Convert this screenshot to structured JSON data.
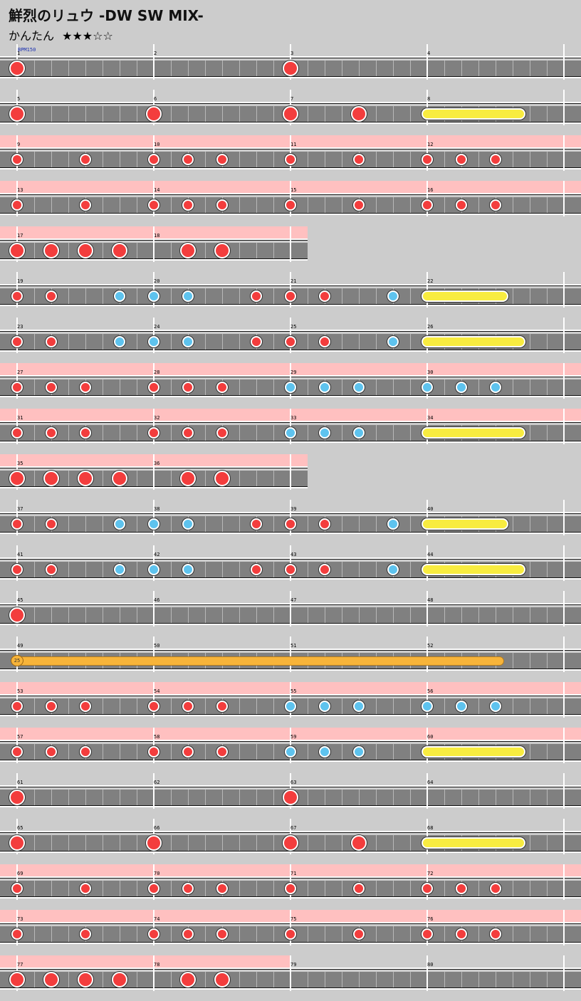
{
  "song": {
    "title": "鮮烈のリュウ -DW SW MIX-",
    "difficulty_label": "かんたん",
    "stars": "★★★☆☆"
  },
  "bpm_label": "BPM150",
  "colors": {
    "background": "#cccccc",
    "lane": "#808080",
    "gogo": "#ffc0c0",
    "don": "#f33d3d",
    "ka": "#5ec3ee",
    "roll": "#f8ec40",
    "balloon": "#f7b43a"
  },
  "rows": [
    {
      "m": [
        1,
        2,
        3,
        4
      ],
      "go": false,
      "notes": [
        [
          0,
          "D"
        ],
        [
          16,
          "D"
        ]
      ]
    },
    {
      "m": [
        5,
        6,
        7,
        8
      ],
      "go": false,
      "notes": [
        [
          0,
          "D"
        ],
        [
          8,
          "D"
        ],
        [
          16,
          "D"
        ],
        [
          20,
          "D"
        ]
      ],
      "rolls": [
        [
          24,
          29.4
        ]
      ]
    },
    {
      "m": [
        9,
        10,
        11,
        12
      ],
      "go": true,
      "notes": [
        [
          0,
          "d"
        ],
        [
          4,
          "d"
        ],
        [
          8,
          "d"
        ],
        [
          10,
          "d"
        ],
        [
          12,
          "d"
        ],
        [
          16,
          "d"
        ],
        [
          20,
          "d"
        ],
        [
          24,
          "d"
        ],
        [
          26,
          "d"
        ],
        [
          28,
          "d"
        ]
      ]
    },
    {
      "m": [
        13,
        14,
        15,
        16
      ],
      "go": true,
      "notes": [
        [
          0,
          "d"
        ],
        [
          4,
          "d"
        ],
        [
          8,
          "d"
        ],
        [
          10,
          "d"
        ],
        [
          12,
          "d"
        ],
        [
          16,
          "d"
        ],
        [
          20,
          "d"
        ],
        [
          24,
          "d"
        ],
        [
          26,
          "d"
        ],
        [
          28,
          "d"
        ]
      ]
    },
    {
      "m": [
        17,
        18
      ],
      "go": true,
      "notes": [
        [
          0,
          "D"
        ],
        [
          2,
          "D"
        ],
        [
          4,
          "D"
        ],
        [
          6,
          "D"
        ],
        [
          10,
          "D"
        ],
        [
          12,
          "D"
        ]
      ]
    },
    {
      "m": [
        19,
        20,
        21,
        22
      ],
      "go": false,
      "notes": [
        [
          0,
          "d"
        ],
        [
          2,
          "d"
        ],
        [
          6,
          "k"
        ],
        [
          8,
          "k"
        ],
        [
          10,
          "k"
        ],
        [
          14,
          "d"
        ],
        [
          16,
          "d"
        ],
        [
          18,
          "d"
        ],
        [
          22,
          "k"
        ]
      ],
      "rolls": [
        [
          24,
          28.4
        ]
      ]
    },
    {
      "m": [
        23,
        24,
        25,
        26
      ],
      "go": false,
      "notes": [
        [
          0,
          "d"
        ],
        [
          2,
          "d"
        ],
        [
          6,
          "k"
        ],
        [
          8,
          "k"
        ],
        [
          10,
          "k"
        ],
        [
          14,
          "d"
        ],
        [
          16,
          "d"
        ],
        [
          18,
          "d"
        ],
        [
          22,
          "k"
        ]
      ],
      "rolls": [
        [
          24,
          29.4
        ]
      ]
    },
    {
      "m": [
        27,
        28,
        29,
        30
      ],
      "go": true,
      "notes": [
        [
          0,
          "d"
        ],
        [
          2,
          "d"
        ],
        [
          4,
          "d"
        ],
        [
          8,
          "d"
        ],
        [
          10,
          "d"
        ],
        [
          12,
          "d"
        ],
        [
          16,
          "k"
        ],
        [
          18,
          "k"
        ],
        [
          20,
          "k"
        ],
        [
          24,
          "k"
        ],
        [
          26,
          "k"
        ],
        [
          28,
          "k"
        ]
      ]
    },
    {
      "m": [
        31,
        32,
        33,
        34
      ],
      "go": true,
      "notes": [
        [
          0,
          "d"
        ],
        [
          2,
          "d"
        ],
        [
          4,
          "d"
        ],
        [
          8,
          "d"
        ],
        [
          10,
          "d"
        ],
        [
          12,
          "d"
        ],
        [
          16,
          "k"
        ],
        [
          18,
          "k"
        ],
        [
          20,
          "k"
        ]
      ],
      "rolls": [
        [
          24,
          29.4
        ]
      ]
    },
    {
      "m": [
        35,
        36
      ],
      "go": true,
      "notes": [
        [
          0,
          "D"
        ],
        [
          2,
          "D"
        ],
        [
          4,
          "D"
        ],
        [
          6,
          "D"
        ],
        [
          10,
          "D"
        ],
        [
          12,
          "D"
        ]
      ]
    },
    {
      "m": [
        37,
        38,
        39,
        40
      ],
      "go": false,
      "notes": [
        [
          0,
          "d"
        ],
        [
          2,
          "d"
        ],
        [
          6,
          "k"
        ],
        [
          8,
          "k"
        ],
        [
          10,
          "k"
        ],
        [
          14,
          "d"
        ],
        [
          16,
          "d"
        ],
        [
          18,
          "d"
        ],
        [
          22,
          "k"
        ]
      ],
      "rolls": [
        [
          24,
          28.4
        ]
      ]
    },
    {
      "m": [
        41,
        42,
        43,
        44
      ],
      "go": false,
      "notes": [
        [
          0,
          "d"
        ],
        [
          2,
          "d"
        ],
        [
          6,
          "k"
        ],
        [
          8,
          "k"
        ],
        [
          10,
          "k"
        ],
        [
          14,
          "d"
        ],
        [
          16,
          "d"
        ],
        [
          18,
          "d"
        ],
        [
          22,
          "k"
        ]
      ],
      "rolls": [
        [
          24,
          29.4
        ]
      ]
    },
    {
      "m": [
        45,
        46,
        47,
        48
      ],
      "go": false,
      "notes": [
        [
          0,
          "D"
        ]
      ]
    },
    {
      "m": [
        49,
        50,
        51,
        52
      ],
      "go": false,
      "notes": [],
      "balloon": {
        "start": 0,
        "end": 28.5,
        "count": "25"
      }
    },
    {
      "m": [
        53,
        54,
        55,
        56
      ],
      "go": true,
      "notes": [
        [
          0,
          "d"
        ],
        [
          2,
          "d"
        ],
        [
          4,
          "d"
        ],
        [
          8,
          "d"
        ],
        [
          10,
          "d"
        ],
        [
          12,
          "d"
        ],
        [
          16,
          "k"
        ],
        [
          18,
          "k"
        ],
        [
          20,
          "k"
        ],
        [
          24,
          "k"
        ],
        [
          26,
          "k"
        ],
        [
          28,
          "k"
        ]
      ]
    },
    {
      "m": [
        57,
        58,
        59,
        60
      ],
      "go": true,
      "notes": [
        [
          0,
          "d"
        ],
        [
          2,
          "d"
        ],
        [
          4,
          "d"
        ],
        [
          8,
          "d"
        ],
        [
          10,
          "d"
        ],
        [
          12,
          "d"
        ],
        [
          16,
          "k"
        ],
        [
          18,
          "k"
        ],
        [
          20,
          "k"
        ]
      ],
      "rolls": [
        [
          24,
          29.4
        ]
      ]
    },
    {
      "m": [
        61,
        62,
        63,
        64
      ],
      "go": false,
      "notes": [
        [
          0,
          "D"
        ],
        [
          16,
          "D"
        ]
      ]
    },
    {
      "m": [
        65,
        66,
        67,
        68
      ],
      "go": false,
      "notes": [
        [
          0,
          "D"
        ],
        [
          8,
          "D"
        ],
        [
          16,
          "D"
        ],
        [
          20,
          "D"
        ]
      ],
      "rolls": [
        [
          24,
          29.4
        ]
      ]
    },
    {
      "m": [
        69,
        70,
        71,
        72
      ],
      "go": true,
      "notes": [
        [
          0,
          "d"
        ],
        [
          4,
          "d"
        ],
        [
          8,
          "d"
        ],
        [
          10,
          "d"
        ],
        [
          12,
          "d"
        ],
        [
          16,
          "d"
        ],
        [
          20,
          "d"
        ],
        [
          24,
          "d"
        ],
        [
          26,
          "d"
        ],
        [
          28,
          "d"
        ]
      ]
    },
    {
      "m": [
        73,
        74,
        75,
        76
      ],
      "go": true,
      "notes": [
        [
          0,
          "d"
        ],
        [
          4,
          "d"
        ],
        [
          8,
          "d"
        ],
        [
          10,
          "d"
        ],
        [
          12,
          "d"
        ],
        [
          16,
          "d"
        ],
        [
          20,
          "d"
        ],
        [
          24,
          "d"
        ],
        [
          26,
          "d"
        ],
        [
          28,
          "d"
        ]
      ]
    },
    {
      "m": [
        77,
        78,
        79,
        80
      ],
      "go": true,
      "goUntil": 16,
      "notes": [
        [
          0,
          "D"
        ],
        [
          2,
          "D"
        ],
        [
          4,
          "D"
        ],
        [
          6,
          "D"
        ],
        [
          10,
          "D"
        ],
        [
          12,
          "D"
        ]
      ]
    }
  ]
}
